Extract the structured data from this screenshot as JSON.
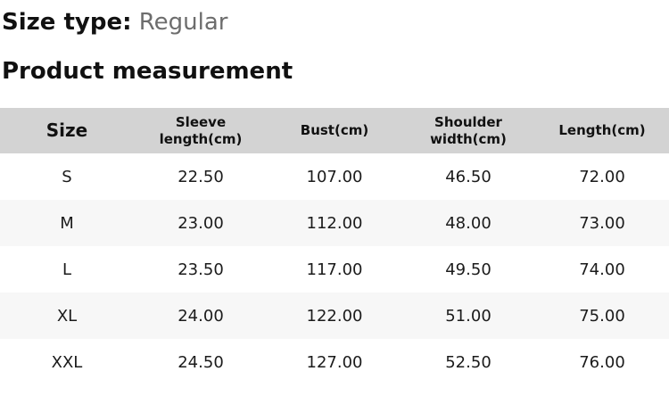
{
  "header": {
    "size_type_label": "Size type:",
    "size_type_value": "Regular",
    "section_title": "Product measurement"
  },
  "table": {
    "columns": [
      "Size",
      "Sleeve\nlength(cm)",
      "Bust(cm)",
      "Shoulder\nwidth(cm)",
      "Length(cm)"
    ],
    "rows": [
      [
        "S",
        "22.50",
        "107.00",
        "46.50",
        "72.00"
      ],
      [
        "M",
        "23.00",
        "112.00",
        "48.00",
        "73.00"
      ],
      [
        "L",
        "23.50",
        "117.00",
        "49.50",
        "74.00"
      ],
      [
        "XL",
        "24.00",
        "122.00",
        "51.00",
        "75.00"
      ],
      [
        "XXL",
        "24.50",
        "127.00",
        "52.50",
        "76.00"
      ]
    ]
  },
  "colors": {
    "header_bg": "#d3d3d3",
    "row_alt_bg": "#f7f7f7",
    "text_color": "#161616",
    "muted_color": "#6d6d6d"
  }
}
